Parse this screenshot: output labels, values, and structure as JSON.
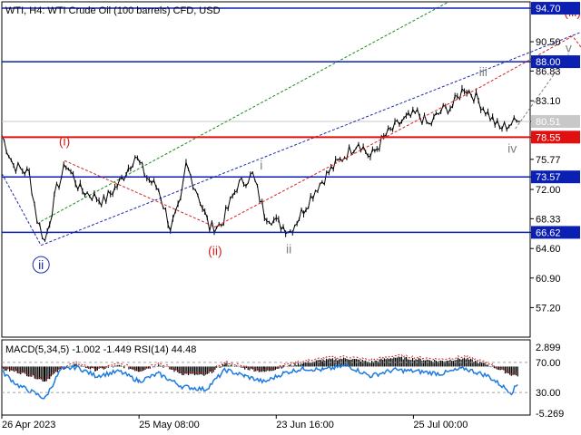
{
  "header": {
    "symbol_text": "WTI, H4:  WTI Crude Oil (100 barrels) CFD, USD"
  },
  "indicator": {
    "header_text": "MACD(5,34,5) -1.002 -1.449 RSI(14) 44.48",
    "ticks": [
      "2.899",
      "70.00",
      "30.00",
      "-5.269"
    ]
  },
  "colors": {
    "blue_level": "#0b1fb3",
    "red_level": "#e01010",
    "price_tag": "#c8c8c8",
    "wave_red": "#d42020",
    "wave_grey": "#808080",
    "wave_blue": "#1a2aa8",
    "channel_green": "#1a8a1a",
    "rsi_line": "#1e7be0",
    "histogram": "#000000"
  },
  "chart_data": {
    "type": "line",
    "price_axis": {
      "range": [
        53.5,
        95.5
      ],
      "ticks": [
        94.7,
        90.5,
        88.0,
        86.83,
        83.1,
        80.51,
        78.55,
        75.77,
        73.57,
        72.0,
        68.33,
        66.62,
        64.6,
        60.9,
        57.2
      ],
      "tick_labels": [
        "94.70",
        "90.50",
        "88.00",
        "86.83",
        "83.10",
        "80.51",
        "78.55",
        "75.77",
        "73.57",
        "72.00",
        "68.33",
        "66.62",
        "64.60",
        "60.90",
        "57.20"
      ]
    },
    "time_axis": {
      "labels": [
        "26 Apr 2023",
        "25 May 08:00",
        "23 Jun 16:00",
        "25 Jul 00:00"
      ],
      "label_bars": [
        0,
        175,
        350,
        525
      ]
    },
    "bars_total": 660,
    "levels": [
      {
        "value": 94.7,
        "label": "94.70",
        "color": "blue"
      },
      {
        "value": 88.0,
        "label": "88.00",
        "color": "blue"
      },
      {
        "value": 78.55,
        "label": "78.55",
        "color": "red"
      },
      {
        "value": 73.57,
        "label": "73.57",
        "color": "blue"
      },
      {
        "value": 66.62,
        "label": "66.62",
        "color": "blue"
      }
    ],
    "current_price": {
      "value": 80.51,
      "label": "80.51"
    },
    "price_path": [
      [
        0,
        78.8
      ],
      [
        15,
        75.0
      ],
      [
        35,
        74.0
      ],
      [
        45,
        68.3
      ],
      [
        55,
        65.5
      ],
      [
        70,
        72.0
      ],
      [
        82,
        75.2
      ],
      [
        100,
        72.0
      ],
      [
        130,
        70.5
      ],
      [
        150,
        72.8
      ],
      [
        170,
        76.2
      ],
      [
        185,
        73.5
      ],
      [
        200,
        72.0
      ],
      [
        215,
        67.2
      ],
      [
        228,
        70.2
      ],
      [
        235,
        75.0
      ],
      [
        250,
        71.5
      ],
      [
        265,
        67.2
      ],
      [
        280,
        67.6
      ],
      [
        300,
        72.4
      ],
      [
        320,
        73.8
      ],
      [
        335,
        69.0
      ],
      [
        350,
        67.9
      ],
      [
        368,
        66.8
      ],
      [
        385,
        69.5
      ],
      [
        400,
        72.0
      ],
      [
        420,
        74.5
      ],
      [
        440,
        76.5
      ],
      [
        455,
        78.0
      ],
      [
        470,
        76.0
      ],
      [
        490,
        78.8
      ],
      [
        510,
        80.5
      ],
      [
        530,
        81.5
      ],
      [
        545,
        80.0
      ],
      [
        560,
        81.8
      ],
      [
        575,
        82.5
      ],
      [
        590,
        84.8
      ],
      [
        605,
        83.5
      ],
      [
        620,
        81.5
      ],
      [
        635,
        79.6
      ],
      [
        650,
        80.3
      ],
      [
        660,
        80.5
      ]
    ],
    "wave_labels": [
      {
        "text": "(i)",
        "color": "red",
        "bar": 80,
        "price": 77.5
      },
      {
        "text": "(ii)",
        "color": "red",
        "bar": 272,
        "price": 63.8
      },
      {
        "text": "(iii)",
        "color": "red",
        "bar": 728,
        "price": 93.7
      },
      {
        "text": "ii",
        "color": "blue",
        "bar": 50,
        "price": 62.0,
        "circled": true
      },
      {
        "text": "i",
        "color": "grey",
        "bar": 331,
        "price": 74.5
      },
      {
        "text": "ii",
        "color": "grey",
        "bar": 366,
        "price": 64.0
      },
      {
        "text": "iii",
        "color": "grey",
        "bar": 614,
        "price": 86.2
      },
      {
        "text": "iv",
        "color": "grey",
        "bar": 651,
        "price": 76.6
      },
      {
        "text": "v",
        "color": "grey",
        "bar": 723,
        "price": 89.2
      }
    ],
    "forecast_paths": [
      {
        "name": "red-wave-path",
        "style": "dashed-red",
        "points": [
          [
            80,
            75.6
          ],
          [
            272,
            67.3
          ],
          [
            610,
            84.8
          ],
          [
            728,
            91.2
          ],
          [
            780,
            84.5
          ]
        ]
      },
      {
        "name": "grey-wave-path",
        "style": "dashed-grey",
        "points": [
          [
            655,
            79.6
          ],
          [
            723,
            89.0
          ]
        ]
      }
    ],
    "channel_lines": [
      {
        "name": "blue-channel-upper",
        "style": "dashed-blue",
        "points": [
          [
            0,
            94.8
          ],
          [
            780,
            94.8
          ]
        ],
        "visible": false
      },
      {
        "name": "blue-channel-lower",
        "style": "dashed-blue",
        "points": [
          [
            50,
            65.0
          ],
          [
            780,
            93.3
          ]
        ]
      },
      {
        "name": "blue-channel-upper-2",
        "style": "dashed-blue",
        "points": [
          [
            0,
            74.0
          ],
          [
            50,
            65.0
          ]
        ]
      },
      {
        "name": "green-channel",
        "style": "dashed-green",
        "points": [
          [
            50,
            68.0
          ],
          [
            570,
            95.5
          ]
        ]
      }
    ],
    "indicator_series": {
      "macd_hist": [
        [
          0,
          -0.3
        ],
        [
          20,
          -0.6
        ],
        [
          40,
          -1.1
        ],
        [
          55,
          -1.6
        ],
        [
          75,
          -0.3
        ],
        [
          95,
          0.2
        ],
        [
          120,
          -0.4
        ],
        [
          150,
          0.1
        ],
        [
          175,
          -0.5
        ],
        [
          200,
          0.2
        ],
        [
          230,
          -0.8
        ],
        [
          260,
          -1.0
        ],
        [
          285,
          0.3
        ],
        [
          310,
          -0.2
        ],
        [
          335,
          -0.6
        ],
        [
          360,
          0.0
        ],
        [
          385,
          0.4
        ],
        [
          410,
          0.7
        ],
        [
          440,
          0.9
        ],
        [
          470,
          0.5
        ],
        [
          500,
          1.0
        ],
        [
          530,
          0.8
        ],
        [
          560,
          0.6
        ],
        [
          590,
          0.9
        ],
        [
          620,
          0.2
        ],
        [
          650,
          -0.9
        ],
        [
          660,
          -1.0
        ]
      ],
      "rsi": [
        [
          0,
          58
        ],
        [
          20,
          40
        ],
        [
          40,
          30
        ],
        [
          55,
          22
        ],
        [
          75,
          60
        ],
        [
          95,
          64
        ],
        [
          120,
          52
        ],
        [
          150,
          58
        ],
        [
          175,
          45
        ],
        [
          200,
          55
        ],
        [
          230,
          38
        ],
        [
          260,
          34
        ],
        [
          285,
          60
        ],
        [
          310,
          52
        ],
        [
          335,
          44
        ],
        [
          360,
          56
        ],
        [
          385,
          62
        ],
        [
          410,
          60
        ],
        [
          440,
          66
        ],
        [
          470,
          52
        ],
        [
          500,
          60
        ],
        [
          530,
          58
        ],
        [
          560,
          55
        ],
        [
          590,
          62
        ],
        [
          620,
          52
        ],
        [
          650,
          30
        ],
        [
          660,
          44
        ]
      ],
      "range": [
        -5.269,
        2.899
      ],
      "rsi_range": [
        0,
        100
      ]
    }
  }
}
